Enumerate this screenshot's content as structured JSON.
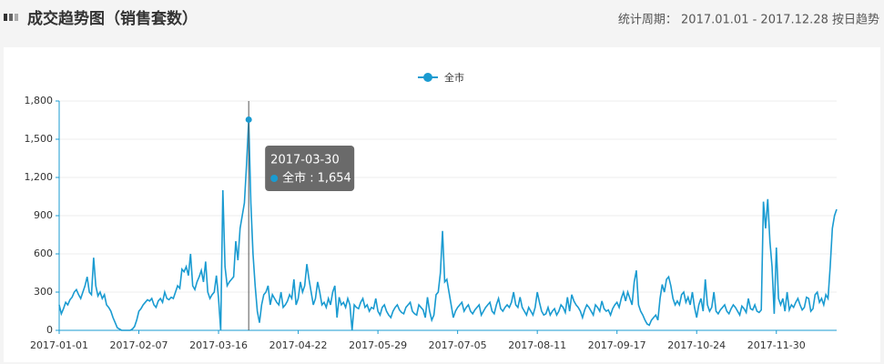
{
  "header": {
    "title": "成交趋势图（销售套数）",
    "period": "统计周期： 2017.01.01 - 2017.12.28 按日趋势"
  },
  "chart_data": {
    "type": "line",
    "categories": [
      "2017-01-01",
      null,
      null,
      null,
      null,
      null,
      null,
      null,
      null,
      null,
      null,
      null,
      null,
      null,
      null,
      null,
      null,
      null,
      null,
      null,
      null,
      null,
      null,
      null,
      null,
      null,
      null,
      null,
      null,
      null,
      null,
      null,
      null,
      null,
      null,
      null,
      null,
      "2017-02-07",
      null,
      null,
      null,
      null,
      null,
      null,
      null,
      null,
      null,
      null,
      null,
      null,
      null,
      null,
      null,
      null,
      null,
      null,
      null,
      null,
      null,
      null,
      null,
      null,
      null,
      null,
      null,
      null,
      null,
      null,
      null,
      null,
      null,
      null,
      null,
      null,
      "2017-03-16",
      null,
      null,
      null,
      null,
      null,
      null,
      null,
      null,
      null,
      null,
      null,
      null,
      null,
      null,
      null,
      null,
      null,
      null,
      null,
      null,
      null,
      null,
      null,
      null,
      null,
      null,
      null,
      null,
      null,
      null,
      null,
      null,
      null,
      null,
      null,
      null,
      "2017-04-22",
      null,
      null,
      null,
      null,
      null,
      null,
      null,
      null,
      null,
      null,
      null,
      null,
      null,
      null,
      null,
      null,
      null,
      null,
      null,
      null,
      null,
      null,
      null,
      null,
      null,
      null,
      null,
      null,
      null,
      null,
      null,
      null,
      null,
      null,
      null,
      null,
      "2017-05-29",
      null,
      null,
      null,
      null,
      null,
      null,
      null,
      null,
      null,
      null,
      null,
      null,
      null,
      null,
      null,
      null,
      null,
      null,
      null,
      null,
      null,
      null,
      null,
      null,
      null,
      null,
      null,
      null,
      null,
      null,
      null,
      null,
      null,
      null,
      null,
      null,
      "2017-07-05",
      null,
      null,
      null,
      null,
      null,
      null,
      null,
      null,
      null,
      null,
      null,
      null,
      null,
      null,
      null,
      null,
      null,
      null,
      null,
      null,
      null,
      null,
      null,
      null,
      null,
      null,
      null,
      null,
      null,
      null,
      null,
      null,
      null,
      null,
      null,
      null,
      "2017-08-11",
      null,
      null,
      null,
      null,
      null,
      null,
      null,
      null,
      null,
      null,
      null,
      null,
      null,
      null,
      null,
      null,
      null,
      null,
      null,
      null,
      null,
      null,
      null,
      null,
      null,
      null,
      null,
      null,
      null,
      null,
      null,
      null,
      null,
      null,
      null,
      null,
      "2017-09-17",
      null,
      null,
      null,
      null,
      null,
      null,
      null,
      null,
      null,
      null,
      null,
      null,
      null,
      null,
      null,
      null,
      null,
      null,
      null,
      null,
      null,
      null,
      null,
      null,
      null,
      null,
      null,
      null,
      null,
      null,
      null,
      null,
      null,
      null,
      null,
      null,
      "2017-10-24",
      null,
      null,
      null,
      null,
      null,
      null,
      null,
      null,
      null,
      null,
      null,
      null,
      null,
      null,
      null,
      null,
      null,
      null,
      null,
      null,
      null,
      null,
      null,
      null,
      null,
      null,
      null,
      null,
      null,
      null,
      null,
      null,
      null,
      null,
      null,
      null,
      "2017-11-30",
      null,
      null,
      null,
      null,
      null,
      null,
      null,
      null,
      null,
      null,
      null,
      null,
      null,
      null,
      null,
      null,
      null,
      null,
      null,
      null,
      null,
      null,
      null,
      null,
      null,
      null,
      null,
      null
    ],
    "series": [
      {
        "name": "全市",
        "color": "#1a9bd1",
        "values": [
          200,
          130,
          170,
          220,
          200,
          240,
          260,
          300,
          320,
          280,
          250,
          300,
          350,
          420,
          300,
          280,
          570,
          350,
          270,
          300,
          250,
          280,
          200,
          180,
          150,
          100,
          60,
          20,
          10,
          0,
          0,
          0,
          0,
          0,
          10,
          30,
          80,
          150,
          170,
          200,
          220,
          240,
          230,
          250,
          200,
          180,
          230,
          250,
          220,
          300,
          250,
          240,
          260,
          250,
          300,
          350,
          330,
          480,
          460,
          500,
          430,
          600,
          350,
          320,
          380,
          420,
          470,
          380,
          540,
          300,
          250,
          280,
          300,
          430,
          250,
          0,
          1100,
          500,
          350,
          380,
          400,
          420,
          700,
          550,
          800,
          900,
          1000,
          1300,
          1654,
          1000,
          600,
          350,
          150,
          60,
          200,
          280,
          300,
          350,
          200,
          280,
          250,
          220,
          200,
          300,
          180,
          200,
          230,
          280,
          250,
          400,
          200,
          250,
          380,
          300,
          350,
          520,
          400,
          300,
          200,
          250,
          380,
          300,
          200,
          220,
          180,
          250,
          200,
          300,
          350,
          100,
          260,
          200,
          220,
          180,
          250,
          200,
          0,
          200,
          180,
          170,
          220,
          250,
          180,
          200,
          150,
          180,
          170,
          250,
          150,
          120,
          180,
          200,
          150,
          120,
          100,
          150,
          180,
          200,
          160,
          140,
          130,
          180,
          200,
          220,
          150,
          130,
          120,
          200,
          180,
          160,
          100,
          260,
          150,
          80,
          120,
          280,
          300,
          450,
          780,
          380,
          400,
          300,
          200,
          100,
          150,
          180,
          200,
          220,
          150,
          180,
          200,
          150,
          130,
          160,
          180,
          200,
          120,
          150,
          180,
          200,
          220,
          150,
          130,
          200,
          250,
          170,
          150,
          180,
          200,
          180,
          220,
          300,
          200,
          180,
          260,
          180,
          150,
          120,
          180,
          150,
          120,
          180,
          300,
          220,
          150,
          120,
          130,
          180,
          120,
          150,
          170,
          120,
          150,
          200,
          180,
          140,
          260,
          150,
          280,
          230,
          200,
          180,
          150,
          100,
          160,
          200,
          180,
          150,
          120,
          200,
          180,
          150,
          230,
          170,
          150,
          160,
          120,
          170,
          200,
          220,
          180,
          250,
          300,
          230,
          300,
          250,
          200,
          380,
          470,
          200,
          150,
          120,
          80,
          50,
          40,
          80,
          100,
          120,
          80,
          250,
          360,
          300,
          400,
          420,
          350,
          250,
          200,
          230,
          200,
          280,
          300,
          220,
          260,
          200,
          300,
          180,
          100,
          200,
          250,
          150,
          400,
          200,
          150,
          180,
          300,
          150,
          130,
          160,
          180,
          200,
          150,
          130,
          170,
          200,
          180,
          150,
          120,
          190,
          170,
          140,
          250,
          170,
          160,
          200,
          150,
          140,
          160,
          1010,
          800,
          1030,
          700,
          500,
          130,
          650,
          250,
          200,
          250,
          150,
          300,
          160,
          200,
          180,
          220,
          250,
          200,
          160,
          180,
          260,
          250,
          150,
          170,
          280,
          300,
          220,
          250,
          200,
          280,
          250,
          500,
          800,
          900,
          950
        ]
      }
    ],
    "ylim": [
      0,
      1800
    ],
    "yticks": [
      0,
      300,
      600,
      900,
      {
        "value": 1200,
        "label": "1,200"
      },
      {
        "value": 1500,
        "label": "1,500"
      },
      {
        "value": 1800,
        "label": "1,800"
      }
    ],
    "grid": true,
    "tooltip": {
      "x": "2017-03-30",
      "value_label": "1,654"
    }
  }
}
